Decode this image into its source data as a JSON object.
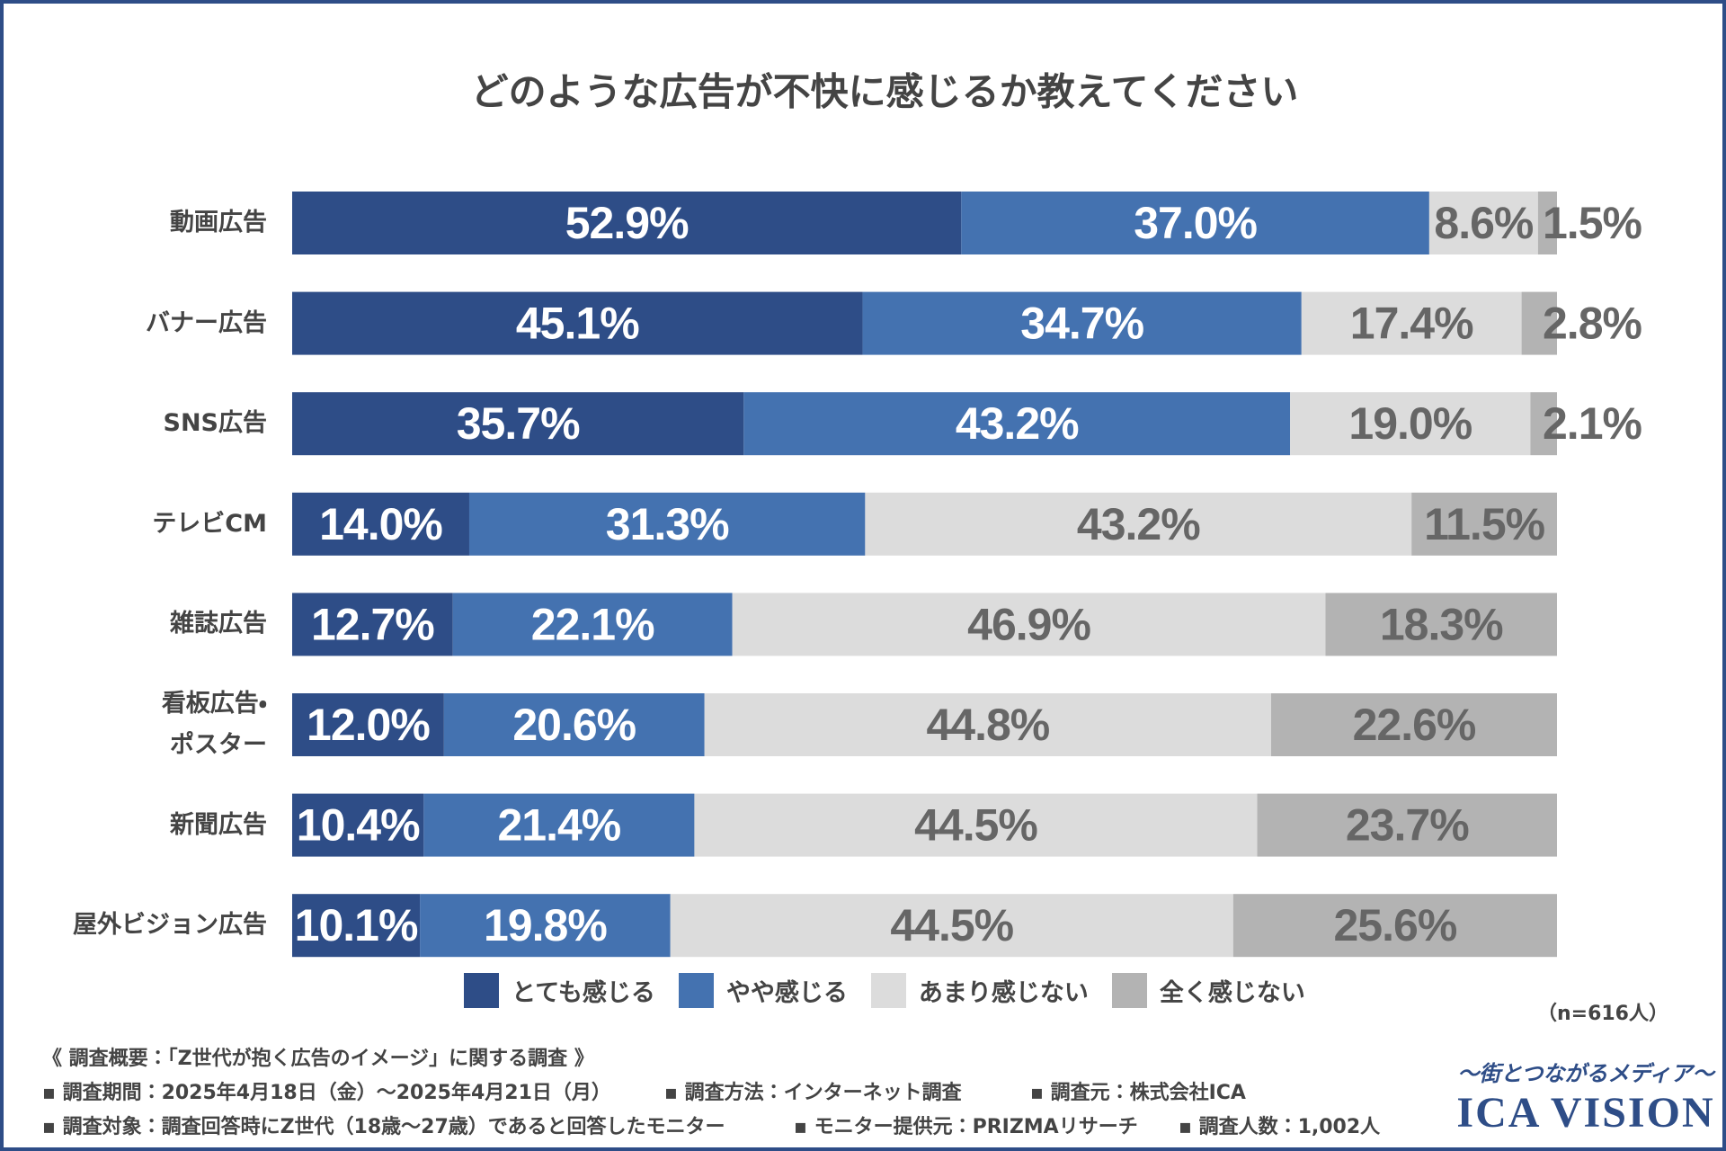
{
  "chart_data": {
    "type": "stacked-barh",
    "title": "どのような広告が不快に感じるか教えてください",
    "categories": [
      "動画広告",
      "バナー広告",
      "SNS広告",
      "テレビCM",
      "雑誌広告",
      "看板広告・\nポスター",
      "新聞広告",
      "屋外ビジョン広告"
    ],
    "xlim": [
      0,
      100
    ],
    "series": [
      {
        "name": "とても感じる",
        "color": "#2e4d87",
        "values": [
          52.9,
          45.1,
          35.7,
          14.0,
          12.7,
          12.0,
          10.4,
          10.1
        ],
        "value_labels": [
          "52.9%",
          "45.1%",
          "35.7%",
          "14.0%",
          "12.7%",
          "12.0%",
          "10.4%",
          "10.1%"
        ]
      },
      {
        "name": "やや感じる",
        "color": "#4472b0",
        "values": [
          37.0,
          34.7,
          43.2,
          31.3,
          22.1,
          20.6,
          21.4,
          19.8
        ],
        "value_labels": [
          "37.0%",
          "34.7%",
          "43.2%",
          "31.3%",
          "22.1%",
          "20.6%",
          "21.4%",
          "19.8%"
        ]
      },
      {
        "name": "あまり感じない",
        "color": "#dcdcdc",
        "values": [
          8.6,
          17.4,
          19.0,
          43.2,
          46.9,
          44.8,
          44.5,
          44.5
        ],
        "value_labels": [
          "8.6%",
          "17.4%",
          "19.0%",
          "43.2%",
          "46.9%",
          "44.8%",
          "44.5%",
          "44.5%"
        ]
      },
      {
        "name": "全く感じない",
        "color": "#b3b3b3",
        "values": [
          1.5,
          2.8,
          2.1,
          11.5,
          18.3,
          22.6,
          23.7,
          25.6
        ],
        "value_labels": [
          "1.5%",
          "2.8%",
          "2.1%",
          "11.5%",
          "18.3%",
          "22.6%",
          "23.7%",
          "25.6%"
        ]
      }
    ],
    "sample_note": "（n=616人）"
  },
  "footer": {
    "heading": "《 調査概要：「Z世代が抱く広告のイメージ」に関する調査 》",
    "lines": [
      [
        "▪ 調査期間：2025年4月18日（金）〜2025年4月21日（月）",
        "▪ 調査方法：インターネット調査",
        "▪ 調査元：株式会社ICA"
      ],
      [
        "▪ 調査対象：調査回答時にZ世代（18歳〜27歳）であると回答したモニター",
        "▪ モニター提供元：PRIZMAリサーチ",
        "▪ 調査人数：1,002人"
      ]
    ],
    "tagline": "〜街とつながるメディア〜",
    "logo": "ICA VISION"
  }
}
